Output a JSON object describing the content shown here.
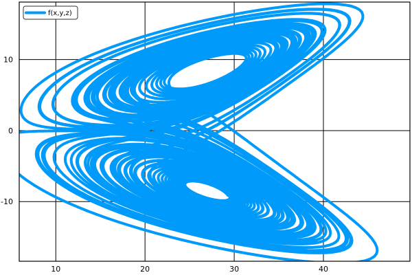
{
  "chart_data": {
    "type": "line",
    "title": "",
    "xlabel": "",
    "ylabel": "",
    "xlim": [
      5.9,
      49.7
    ],
    "ylim": [
      -18.4,
      18.1
    ],
    "xticks": [
      10,
      20,
      30,
      40
    ],
    "xtick_labels": [
      "10",
      "20",
      "30",
      "40"
    ],
    "yticks": [
      -10,
      0,
      10
    ],
    "ytick_labels": [
      "-10",
      "0",
      "10"
    ],
    "grid": true,
    "legend": "top-left",
    "series": [
      {
        "name": "f(x,y,z)",
        "color": "#009AFA"
      }
    ]
  }
}
